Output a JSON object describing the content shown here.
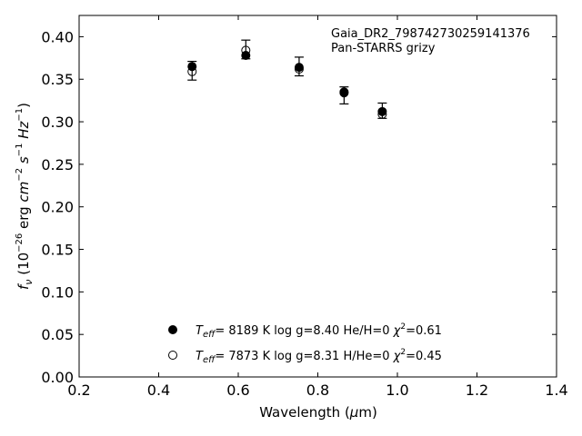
{
  "chart_data": {
    "type": "scatter",
    "annotation_lines": [
      "Gaia_DR2_798742730259141376",
      "Pan-STARRS grizy"
    ],
    "xlabel": "Wavelength (μm)",
    "ylabel": "f_ν (10^-26 erg cm^-2 s^-1 Hz^-1)",
    "xlim": [
      0.2,
      1.4
    ],
    "ylim": [
      0.0,
      0.425
    ],
    "x_ticks": [
      0.2,
      0.4,
      0.6,
      0.8,
      1.0,
      1.2,
      1.4
    ],
    "y_ticks": [
      0.0,
      0.05,
      0.1,
      0.15,
      0.2,
      0.25,
      0.3,
      0.35,
      0.4
    ],
    "x_tick_labels": [
      "0.2",
      "0.4",
      "0.6",
      "0.8",
      "1.0",
      "1.2",
      "1.4"
    ],
    "y_tick_labels": [
      "0.00",
      "0.05",
      "0.10",
      "0.15",
      "0.20",
      "0.25",
      "0.30",
      "0.35",
      "0.40"
    ],
    "grid": false,
    "legend_position": "bottom-center",
    "observed": {
      "x": [
        0.484,
        0.619,
        0.753,
        0.866,
        0.962
      ],
      "y": [
        0.36,
        0.385,
        0.365,
        0.331,
        0.313
      ],
      "yerr": [
        0.011,
        0.011,
        0.011,
        0.01,
        0.009
      ]
    },
    "series": [
      {
        "marker": "filled",
        "legend_text": "Teff= 8189 K log g=8.40 He/H=0 χ²=0.61",
        "x": [
          0.484,
          0.619,
          0.753,
          0.866,
          0.962
        ],
        "y": [
          0.365,
          0.378,
          0.364,
          0.335,
          0.312
        ]
      },
      {
        "marker": "open",
        "legend_text": "Teff= 7873 K log g=8.31 H/He=0 χ²=0.45",
        "x": [
          0.484,
          0.619,
          0.753,
          0.866,
          0.962
        ],
        "y": [
          0.359,
          0.384,
          0.362,
          0.334,
          0.309
        ]
      }
    ]
  },
  "legend": {
    "entry1": {
      "teff_value": "8189 K",
      "logg": "log g=8.40",
      "comp": "He/H=0",
      "chi2": "=0.61"
    },
    "entry2": {
      "teff_value": "7873 K",
      "logg": "log g=8.31",
      "comp": "H/He=0",
      "chi2": "=0.45"
    }
  }
}
